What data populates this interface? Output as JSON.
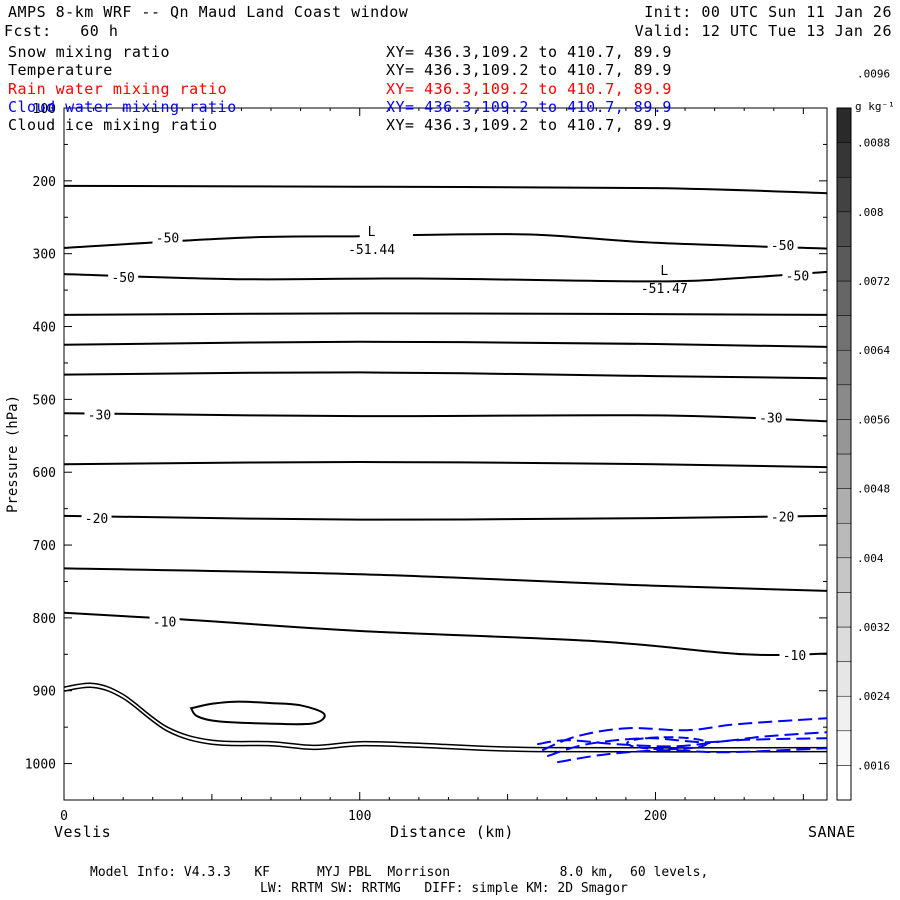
{
  "header": {
    "title": "AMPS 8-km WRF -- Qn Maud Land Coast window",
    "forecast": "Fcst:   60 h",
    "init": "Init: 00 UTC Sun 11 Jan 26",
    "valid": "Valid: 12 UTC Tue 13 Jan 26"
  },
  "fields": [
    {
      "name": "Snow mixing ratio",
      "xy": "XY= 436.3,109.2 to 410.7, 89.9",
      "color": "#000000"
    },
    {
      "name": "Temperature",
      "xy": "XY= 436.3,109.2 to 410.7, 89.9",
      "color": "#000000"
    },
    {
      "name": "Rain water mixing ratio",
      "xy": "XY= 436.3,109.2 to 410.7, 89.9",
      "color": "#ff0000"
    },
    {
      "name": "Cloud water mixing ratio",
      "xy": "XY= 436.3,109.2 to 410.7, 89.9",
      "color": "#0000ff"
    },
    {
      "name": "Cloud ice mixing ratio",
      "xy": "XY= 436.3,109.2 to 410.7, 89.9",
      "color": "#000000"
    }
  ],
  "footer": {
    "line1": "Model Info: V4.3.3   KF      MYJ PBL  Morrison              8.0 km,  60 levels,",
    "line2": "LW: RRTM SW: RRTMG   DIFF: simple KM: 2D Smagor"
  },
  "chart_data": {
    "type": "contour",
    "ylabel": "Pressure (hPa)",
    "xlabel": "Distance (km)",
    "x_start_label": "Veslis",
    "x_end_label": "SANAE",
    "xlim": [
      0,
      258
    ],
    "ylim": [
      1050,
      100
    ],
    "x_ticks": [
      0,
      100,
      200
    ],
    "y_ticks": [
      100,
      200,
      300,
      400,
      500,
      600,
      700,
      800,
      900,
      1000
    ],
    "isotherms": [
      {
        "label": "",
        "points": [
          [
            0,
            207
          ],
          [
            100,
            208
          ],
          [
            200,
            210
          ],
          [
            258,
            217
          ]
        ],
        "gaps": []
      },
      {
        "label": "-50",
        "points": [
          [
            0,
            292
          ],
          [
            60,
            278
          ],
          [
            100,
            276
          ],
          [
            125,
            274
          ],
          [
            160,
            274
          ],
          [
            200,
            285
          ],
          [
            258,
            293
          ]
        ],
        "gaps": [
          [
            100,
            118
          ]
        ]
      },
      {
        "label": "-50",
        "points": [
          [
            0,
            328
          ],
          [
            60,
            335
          ],
          [
            120,
            334
          ],
          [
            200,
            338
          ],
          [
            230,
            333
          ],
          [
            258,
            325
          ]
        ],
        "gaps": []
      },
      {
        "label": "",
        "points": [
          [
            0,
            384
          ],
          [
            100,
            382
          ],
          [
            200,
            383
          ],
          [
            258,
            384
          ]
        ],
        "gaps": []
      },
      {
        "label": "",
        "points": [
          [
            0,
            425
          ],
          [
            100,
            421
          ],
          [
            200,
            424
          ],
          [
            258,
            428
          ]
        ],
        "gaps": []
      },
      {
        "label": "",
        "points": [
          [
            0,
            466
          ],
          [
            100,
            463
          ],
          [
            200,
            468
          ],
          [
            258,
            471
          ]
        ],
        "gaps": []
      },
      {
        "label": "-30",
        "points": [
          [
            0,
            519
          ],
          [
            100,
            523
          ],
          [
            200,
            522
          ],
          [
            258,
            530
          ]
        ],
        "gaps": []
      },
      {
        "label": "",
        "points": [
          [
            0,
            589
          ],
          [
            100,
            586
          ],
          [
            200,
            589
          ],
          [
            258,
            593
          ]
        ],
        "gaps": []
      },
      {
        "label": "-20",
        "points": [
          [
            0,
            660
          ],
          [
            100,
            665
          ],
          [
            200,
            663
          ],
          [
            258,
            660
          ]
        ],
        "gaps": []
      },
      {
        "label": "",
        "points": [
          [
            0,
            732
          ],
          [
            100,
            740
          ],
          [
            200,
            756
          ],
          [
            258,
            763
          ]
        ],
        "gaps": []
      },
      {
        "label": "-10",
        "points": [
          [
            0,
            793
          ],
          [
            40,
            802
          ],
          [
            100,
            818
          ],
          [
            180,
            832
          ],
          [
            230,
            850
          ],
          [
            258,
            849
          ]
        ],
        "gaps": []
      }
    ],
    "contour_labels": [
      {
        "text": "-50",
        "x": 35,
        "p": 278
      },
      {
        "text": "-50",
        "x": 20,
        "p": 332
      },
      {
        "text": "-50",
        "x": 243,
        "p": 288
      },
      {
        "text": "-50",
        "x": 248,
        "p": 330
      },
      {
        "text": "-30",
        "x": 12,
        "p": 521
      },
      {
        "text": "-30",
        "x": 239,
        "p": 525
      },
      {
        "text": "-20",
        "x": 11,
        "p": 663
      },
      {
        "text": "-20",
        "x": 243,
        "p": 661
      },
      {
        "text": "-10",
        "x": 34,
        "p": 805
      },
      {
        "text": "-10",
        "x": 247,
        "p": 851
      }
    ],
    "minima": [
      {
        "symbol": "L",
        "value": "-51.44",
        "x": 104,
        "p": 287
      },
      {
        "symbol": "L",
        "value": "-51.47",
        "x": 203,
        "p": 340
      }
    ],
    "terrain": [
      [
        0,
        895
      ],
      [
        10,
        890
      ],
      [
        20,
        905
      ],
      [
        35,
        950
      ],
      [
        50,
        968
      ],
      [
        70,
        970
      ],
      [
        85,
        975
      ],
      [
        100,
        970
      ],
      [
        120,
        972
      ],
      [
        160,
        978
      ],
      [
        258,
        978
      ]
    ],
    "snow_contour": [
      [
        43,
        924
      ],
      [
        50,
        918
      ],
      [
        58,
        915
      ],
      [
        70,
        917
      ],
      [
        80,
        920
      ],
      [
        88,
        932
      ],
      [
        84,
        945
      ],
      [
        68,
        945
      ],
      [
        52,
        942
      ],
      [
        45,
        935
      ],
      [
        43,
        924
      ]
    ],
    "cloud_water_region": {
      "x": [
        160,
        258
      ],
      "p": [
        935,
        980
      ]
    },
    "colorbar": {
      "unit": "g kg⁻¹",
      "labels": [
        ".0016",
        ".0024",
        ".0032",
        ".004",
        ".0048",
        ".0056",
        ".0064",
        ".0072",
        ".008",
        ".0088",
        ".0096"
      ],
      "colors": [
        "#ffffff",
        "#f8f8f8",
        "#f0f0f0",
        "#e6e6e6",
        "#dcdcdc",
        "#d2d2d2",
        "#c6c6c6",
        "#bababa",
        "#aeaeae",
        "#a2a2a2",
        "#969696",
        "#8a8a8a",
        "#7e7e7e",
        "#727272",
        "#666666",
        "#5a5a5a",
        "#4e4e4e",
        "#424242",
        "#363636",
        "#2a2a2a"
      ]
    }
  }
}
